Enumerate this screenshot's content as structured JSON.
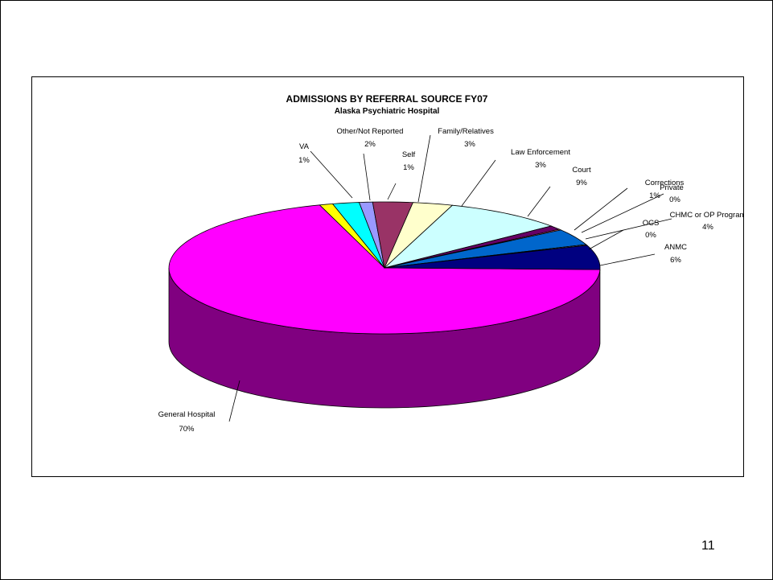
{
  "slide": {
    "page_number": "11"
  },
  "chart_data": {
    "type": "pie",
    "title": "ADMISSIONS BY REFERRAL SOURCE FY07",
    "subtitle": "Alaska Psychiatric Hospital",
    "slices": [
      {
        "name": "General Hospital",
        "label": "70%",
        "value": 70,
        "color": "#FF00FF",
        "side": "#800080"
      },
      {
        "name": "VA",
        "label": "1%",
        "value": 1,
        "color": "#FFFF00",
        "side": "#808000"
      },
      {
        "name": "Other/Not Reported",
        "label": "2%",
        "value": 2,
        "color": "#00FFFF",
        "side": "#008080"
      },
      {
        "name": "Self",
        "label": "1%",
        "value": 1,
        "color": "#9999FF",
        "side": "#4C4C80"
      },
      {
        "name": "Family/Relatives",
        "label": "3%",
        "value": 3,
        "color": "#993366",
        "side": "#4C1A33"
      },
      {
        "name": "Law Enforcement",
        "label": "3%",
        "value": 3,
        "color": "#FFFFCC",
        "side": "#808066"
      },
      {
        "name": "Court",
        "label": "9%",
        "value": 9,
        "color": "#CCFFFF",
        "side": "#668080"
      },
      {
        "name": "Corrections",
        "label": "1%",
        "value": 1,
        "color": "#660066",
        "side": "#330033"
      },
      {
        "name": "Private",
        "label": "0%",
        "value": 0.2,
        "color": "#FF8080",
        "side": "#804040"
      },
      {
        "name": "CHMC or OP Program",
        "label": "4%",
        "value": 4,
        "color": "#0066CC",
        "side": "#003366"
      },
      {
        "name": "OCS",
        "label": "0%",
        "value": 0.2,
        "color": "#CCCCFF",
        "side": "#666680"
      },
      {
        "name": "ANMC",
        "label": "6%",
        "value": 6,
        "color": "#000080",
        "side": "#000040"
      }
    ]
  }
}
